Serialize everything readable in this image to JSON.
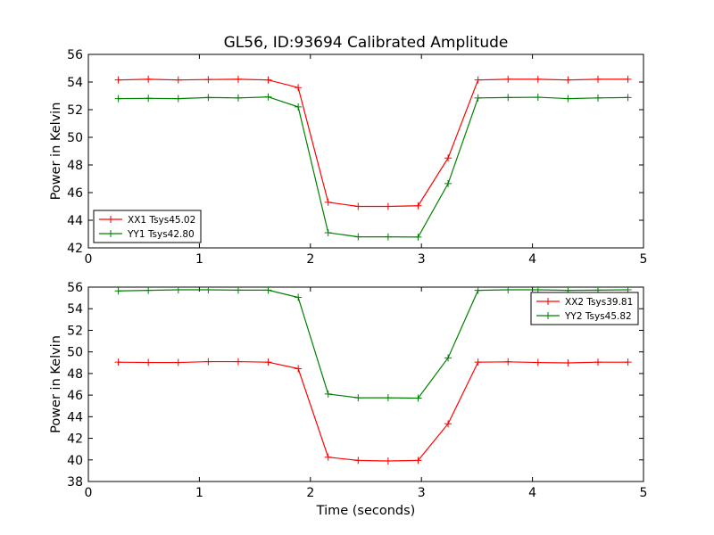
{
  "figure_title": "GL56, ID:93694 Calibrated Amplitude",
  "chart_data": [
    {
      "type": "line",
      "title": "GL56, ID:93694 Calibrated Amplitude",
      "xlabel": "",
      "ylabel": "Power in Kelvin",
      "xlim": [
        0,
        5
      ],
      "ylim": [
        42,
        56
      ],
      "xticks": [
        "0",
        "1",
        "2",
        "3",
        "4",
        "5"
      ],
      "yticks": [
        "42",
        "44",
        "46",
        "48",
        "50",
        "52",
        "54",
        "56"
      ],
      "grid": false,
      "legend_position": "lower-left",
      "x": [
        0.27,
        0.54,
        0.81,
        1.08,
        1.35,
        1.62,
        1.89,
        2.16,
        2.43,
        2.7,
        2.97,
        3.24,
        3.51,
        3.78,
        4.05,
        4.32,
        4.59,
        4.86
      ],
      "series": [
        {
          "name": "XX1 Tsys45.02",
          "color": "#ff0000",
          "values": [
            54.15,
            54.2,
            54.15,
            54.18,
            54.2,
            54.15,
            53.6,
            45.3,
            45.0,
            45.0,
            45.05,
            48.5,
            54.15,
            54.2,
            54.2,
            54.15,
            54.2,
            54.2
          ]
        },
        {
          "name": "YY1 Tsys42.80",
          "color": "#008000",
          "values": [
            52.8,
            52.82,
            52.8,
            52.88,
            52.85,
            52.92,
            52.2,
            43.1,
            42.8,
            42.8,
            42.78,
            46.65,
            52.85,
            52.88,
            52.9,
            52.8,
            52.85,
            52.88
          ]
        }
      ]
    },
    {
      "type": "line",
      "xlabel": "Time (seconds)",
      "ylabel": "Power in Kelvin",
      "xlim": [
        0,
        5
      ],
      "ylim": [
        38,
        56
      ],
      "xticks": [
        "0",
        "1",
        "2",
        "3",
        "4",
        "5"
      ],
      "yticks": [
        "38",
        "40",
        "42",
        "44",
        "46",
        "48",
        "50",
        "52",
        "54",
        "56"
      ],
      "grid": false,
      "legend_position": "upper-right",
      "x": [
        0.27,
        0.54,
        0.81,
        1.08,
        1.35,
        1.62,
        1.89,
        2.16,
        2.43,
        2.7,
        2.97,
        3.24,
        3.51,
        3.78,
        4.05,
        4.32,
        4.59,
        4.86
      ],
      "series": [
        {
          "name": "XX2 Tsys39.81",
          "color": "#ff0000",
          "values": [
            49.05,
            49.02,
            49.02,
            49.1,
            49.1,
            49.05,
            48.45,
            40.25,
            39.95,
            39.9,
            39.95,
            43.35,
            49.05,
            49.08,
            49.02,
            48.98,
            49.05,
            49.05
          ]
        },
        {
          "name": "YY2 Tsys45.82",
          "color": "#008000",
          "values": [
            55.65,
            55.7,
            55.75,
            55.75,
            55.72,
            55.72,
            55.05,
            46.1,
            45.75,
            45.75,
            45.72,
            49.45,
            55.7,
            55.75,
            55.75,
            55.7,
            55.72,
            55.75
          ]
        }
      ]
    }
  ]
}
